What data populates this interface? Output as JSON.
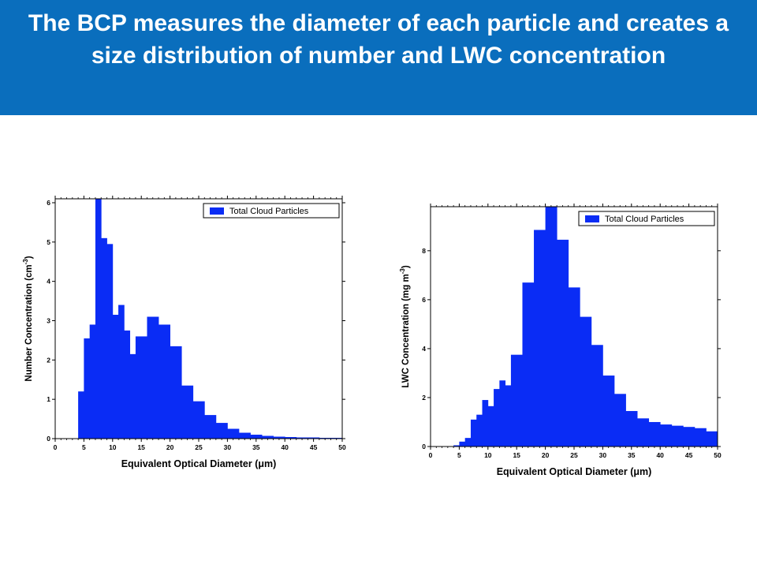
{
  "header": {
    "title": "The BCP measures the diameter of each particle and creates a size distribution of number and LWC concentration"
  },
  "colors": {
    "banner": "#0a6ebd",
    "bar_fill": "#0a2cf5",
    "text": "#ffffff"
  },
  "chart_data": [
    {
      "type": "bar",
      "xlabel": "Equivalent Optical Diameter (μm)",
      "ylabel": "Number Concentration (cm-3)",
      "ylabel_main": "Number Concentration (cm",
      "ylabel_sup": "-3",
      "ylabel_close": ")",
      "legend": "Total Cloud Particles",
      "legend_position": "top-right",
      "xlim": [
        0,
        50
      ],
      "ylim": [
        0,
        6.1
      ],
      "x_ticks": [
        0,
        5,
        10,
        15,
        20,
        25,
        30,
        35,
        40,
        45,
        50
      ],
      "y_ticks": [
        0,
        1,
        2,
        3,
        4,
        5,
        6
      ],
      "bin_edges": [
        4,
        5,
        6,
        7,
        8,
        9,
        10,
        11,
        12,
        13,
        14,
        16,
        18,
        20,
        22,
        24,
        26,
        28,
        30,
        32,
        34,
        36,
        38,
        40,
        42,
        44,
        46,
        48,
        50
      ],
      "values": [
        1.2,
        2.55,
        2.9,
        6.1,
        5.1,
        4.95,
        3.15,
        3.4,
        2.75,
        2.15,
        2.6,
        3.1,
        2.9,
        2.35,
        1.35,
        0.95,
        0.6,
        0.4,
        0.25,
        0.15,
        0.1,
        0.07,
        0.05,
        0.04,
        0.03,
        0.03,
        0.02,
        0.02
      ]
    },
    {
      "type": "bar",
      "xlabel": "Equivalent Optical Diameter (μm)",
      "ylabel": "LWC Concentration (mg m-3)",
      "ylabel_main": "LWC Concentration (mg m",
      "ylabel_sup": "-3",
      "ylabel_close": ")",
      "legend": "Total Cloud Particles",
      "legend_position": "top-right",
      "xlim": [
        0,
        50
      ],
      "ylim": [
        0,
        9.8
      ],
      "x_ticks": [
        0,
        5,
        10,
        15,
        20,
        25,
        30,
        35,
        40,
        45,
        50
      ],
      "y_ticks": [
        0,
        2,
        4,
        6,
        8
      ],
      "bin_edges": [
        4,
        5,
        6,
        7,
        8,
        9,
        10,
        11,
        12,
        13,
        14,
        16,
        18,
        20,
        22,
        24,
        26,
        28,
        30,
        32,
        34,
        36,
        38,
        40,
        42,
        44,
        46,
        48,
        50
      ],
      "values": [
        0.05,
        0.2,
        0.35,
        1.1,
        1.3,
        1.9,
        1.65,
        2.35,
        2.7,
        2.5,
        3.75,
        6.7,
        8.85,
        9.8,
        8.45,
        6.5,
        5.3,
        4.15,
        2.9,
        2.15,
        1.45,
        1.15,
        1.0,
        0.9,
        0.85,
        0.8,
        0.75,
        0.62
      ]
    }
  ]
}
